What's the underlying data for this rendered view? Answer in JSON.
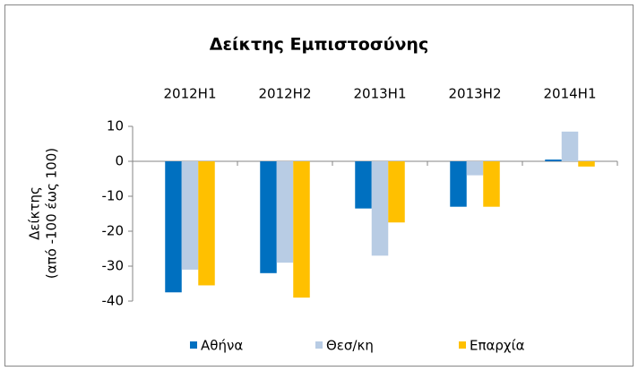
{
  "chart_data": {
    "type": "bar",
    "title": "Δείκτης Εμπιστοσύνης",
    "y_label": [
      "Δείκτης",
      "(από -100 έως 100)"
    ],
    "categories": [
      "2012H1",
      "2012H2",
      "2013H1",
      "2013H2",
      "2014H1"
    ],
    "series": [
      {
        "name": "Αθήνα",
        "color": "#0070c0",
        "values": [
          -37.5,
          -32,
          -13.5,
          -13,
          0.5
        ]
      },
      {
        "name": "Θεσ/κη",
        "color": "#b8cce4",
        "values": [
          -31,
          -29,
          -27,
          -4,
          8.5
        ]
      },
      {
        "name": "Επαρχία",
        "color": "#ffc000",
        "values": [
          -35.5,
          -39,
          -17.5,
          -13,
          -1.5
        ]
      }
    ],
    "ylim": [
      -40,
      10
    ],
    "yticks": [
      10,
      0,
      -10,
      -20,
      -30,
      -40
    ],
    "grid": false,
    "legend": "bottom"
  }
}
